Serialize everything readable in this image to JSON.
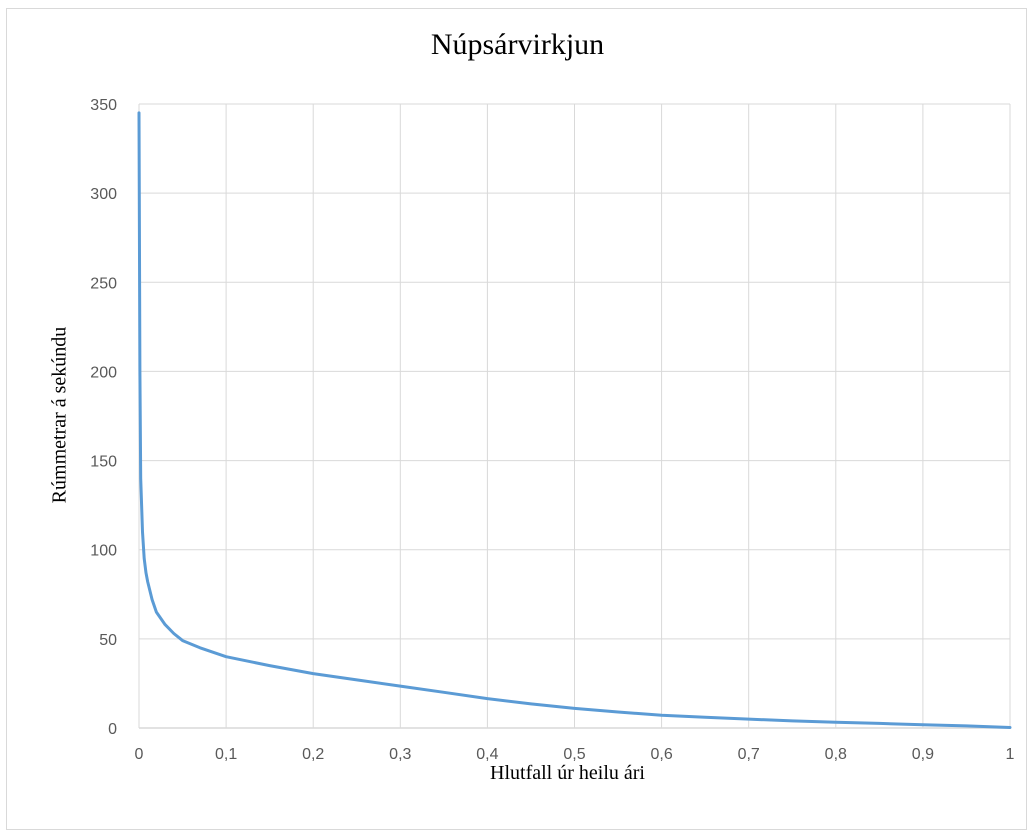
{
  "chart_data": {
    "type": "line",
    "title": "Núpsárvirkjun",
    "xlabel": "Hlutfall úr heilu ári",
    "ylabel": "Rúmmetrar á sekúndu",
    "xlim": [
      0,
      1
    ],
    "ylim": [
      0,
      350
    ],
    "x_ticks": [
      "0",
      "0,1",
      "0,2",
      "0,3",
      "0,4",
      "0,5",
      "0,6",
      "0,7",
      "0,8",
      "0,9",
      "1"
    ],
    "y_ticks": [
      "0",
      "50",
      "100",
      "150",
      "200",
      "250",
      "300",
      "350"
    ],
    "grid": true,
    "legend": "none",
    "series": [
      {
        "color": "#5b9bd5",
        "x": [
          0,
          0.001,
          0.002,
          0.004,
          0.006,
          0.008,
          0.01,
          0.015,
          0.02,
          0.03,
          0.04,
          0.05,
          0.07,
          0.1,
          0.15,
          0.2,
          0.25,
          0.3,
          0.35,
          0.4,
          0.45,
          0.5,
          0.55,
          0.6,
          0.65,
          0.7,
          0.75,
          0.8,
          0.85,
          0.9,
          0.95,
          1.0
        ],
        "y": [
          345,
          200,
          140,
          110,
          95,
          87,
          82,
          72,
          65,
          58,
          53,
          49,
          45,
          40,
          35,
          30.5,
          27,
          23.5,
          20,
          16.5,
          13.5,
          11,
          9,
          7.2,
          6,
          5,
          4,
          3.2,
          2.6,
          1.8,
          1.2,
          0.3
        ]
      }
    ]
  }
}
